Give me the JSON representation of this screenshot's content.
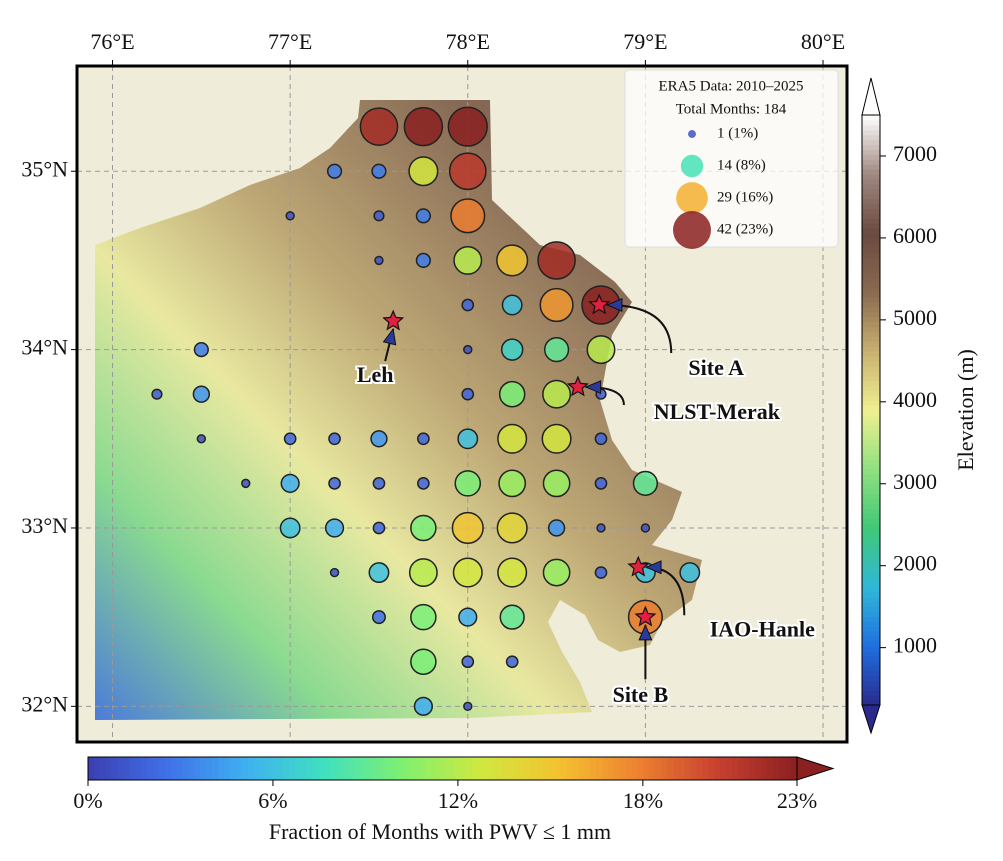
{
  "chart_data": {
    "type": "scatter",
    "x": [
      77.5,
      77.75,
      78,
      77.25,
      77.5,
      77.75,
      78,
      77,
      77.5,
      77.75,
      78,
      77.5,
      77.75,
      78,
      78.25,
      78.5,
      78,
      78.25,
      78.5,
      78.75,
      76.5,
      78,
      78.25,
      78.5,
      78.75,
      76.25,
      76.5,
      78,
      78.25,
      78.5,
      78.75,
      76.5,
      77,
      77.25,
      77.5,
      77.75,
      78,
      78.25,
      78.5,
      78.75,
      76.75,
      77,
      77.25,
      77.5,
      77.75,
      78,
      78.25,
      78.5,
      78.75,
      79,
      77,
      77.25,
      77.5,
      77.75,
      78,
      78.25,
      78.5,
      78.75,
      79,
      77.25,
      77.5,
      77.75,
      78,
      78.25,
      78.5,
      78.75,
      79,
      79.25,
      77.5,
      77.75,
      78,
      78.25,
      79,
      77.75,
      78,
      78.25,
      77.75,
      78
    ],
    "y": [
      35.25,
      35.25,
      35.25,
      35,
      35,
      35,
      35,
      34.75,
      34.75,
      34.75,
      34.75,
      34.5,
      34.5,
      34.5,
      34.5,
      34.5,
      34.25,
      34.25,
      34.25,
      34.25,
      34,
      34,
      34,
      34,
      34,
      33.75,
      33.75,
      33.75,
      33.75,
      33.75,
      33.75,
      33.5,
      33.5,
      33.5,
      33.5,
      33.5,
      33.5,
      33.5,
      33.5,
      33.5,
      33.25,
      33.25,
      33.25,
      33.25,
      33.25,
      33.25,
      33.25,
      33.25,
      33.25,
      33.25,
      33,
      33,
      33,
      33,
      33,
      33,
      33,
      33,
      33,
      32.75,
      32.75,
      32.75,
      32.75,
      32.75,
      32.75,
      32.75,
      32.75,
      32.75,
      32.5,
      32.5,
      32.5,
      32.5,
      32.5,
      32.25,
      32.25,
      32.25,
      32,
      32
    ],
    "values": [
      22,
      23,
      24,
      3,
      3,
      13,
      21,
      1,
      1.5,
      3,
      18,
      1,
      3,
      12,
      15,
      22,
      2,
      6,
      17,
      23,
      3,
      1,
      7,
      9,
      12,
      1.5,
      4,
      2,
      10,
      12,
      1.5,
      1,
      2,
      2,
      4,
      2,
      6,
      13,
      13,
      2,
      1,
      5,
      2,
      2,
      2,
      10,
      11,
      11,
      2,
      9,
      6,
      5,
      2,
      10,
      15,
      14,
      4,
      1,
      1,
      1,
      6,
      12,
      13,
      13,
      11,
      2,
      6,
      6,
      2.5,
      10,
      5,
      9,
      18,
      10,
      2,
      2,
      5,
      1
    ],
    "xlim": [
      75.8,
      80.135
    ],
    "ylim": [
      31.8,
      35.59
    ],
    "xticks": [
      {
        "value": 76,
        "label": "76°E"
      },
      {
        "value": 77,
        "label": "77°E"
      },
      {
        "value": 78,
        "label": "78°E"
      },
      {
        "value": 79,
        "label": "79°E"
      },
      {
        "value": 80,
        "label": "80°E"
      }
    ],
    "yticks": [
      {
        "value": 32,
        "label": "32°N"
      },
      {
        "value": 33,
        "label": "33°N"
      },
      {
        "value": 34,
        "label": "34°N"
      },
      {
        "value": 35,
        "label": "35°N"
      }
    ],
    "grid": true,
    "colormap": [
      "#3b3fb0",
      "#4070e8",
      "#3fb0f0",
      "#40e0c0",
      "#80f070",
      "#d0e840",
      "#f5c030",
      "#ec8030",
      "#c84030",
      "#8a2020"
    ],
    "colorbar": {
      "label": "Fraction of Months with PWV ≤ 1 mm",
      "lim": [
        0,
        23
      ],
      "ticks": [
        {
          "value": 0,
          "label": "0%"
        },
        {
          "value": 6,
          "label": "6%"
        },
        {
          "value": 12,
          "label": "12%"
        },
        {
          "value": 18,
          "label": "18%"
        },
        {
          "value": 23,
          "label": "23%"
        }
      ]
    },
    "size_legend": {
      "title": [
        "ERA5 Data: 2010–2025",
        "Total Months: 184"
      ],
      "entries": [
        {
          "label": "1 (1%)",
          "value": 1
        },
        {
          "label": "14 (8%)",
          "value": 8
        },
        {
          "label": "29 (16%)",
          "value": 16
        },
        {
          "label": "42 (23%)",
          "value": 23
        }
      ]
    },
    "elevation_colorbar": {
      "label": "Elevation (m)",
      "lim": [
        300,
        7500
      ],
      "ticks": [
        1000,
        2000,
        3000,
        4000,
        5000,
        6000,
        7000
      ],
      "colormap": [
        "#2a2a8c",
        "#1f6fe0",
        "#30b8d8",
        "#40c878",
        "#90e080",
        "#f0f090",
        "#c8b070",
        "#8a6a50",
        "#6a4a40",
        "#a08880",
        "#ffffff"
      ]
    },
    "annotations": [
      {
        "text": "Leh",
        "lon": 77.58,
        "lat": 34.16
      },
      {
        "text": "Site A",
        "lon": 78.74,
        "lat": 34.25
      },
      {
        "text": "NLST-Merak",
        "lon": 78.62,
        "lat": 33.79
      },
      {
        "text": "IAO-Hanle",
        "lon": 78.96,
        "lat": 32.78
      },
      {
        "text": "Site B",
        "lon": 79.0,
        "lat": 32.5
      }
    ]
  }
}
